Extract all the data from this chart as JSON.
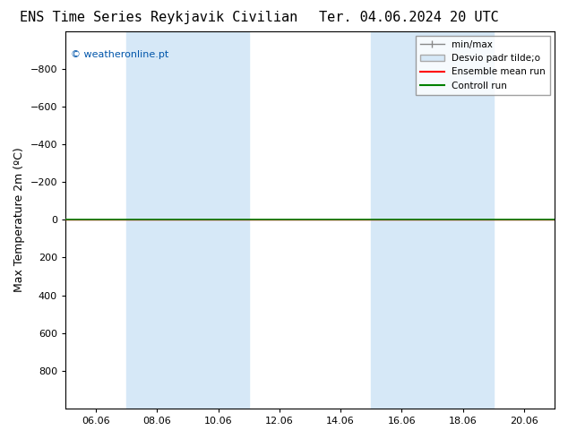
{
  "title_left": "ENS Time Series Reykjavik Civilian",
  "title_right": "Ter. 04.06.2024 20 UTC",
  "ylabel": "Max Temperature 2m (ºC)",
  "ylim": [
    -1000,
    1000
  ],
  "yticks": [
    -800,
    -600,
    -400,
    -200,
    0,
    200,
    400,
    600,
    800
  ],
  "xtick_labels": [
    "06.06",
    "08.06",
    "10.06",
    "12.06",
    "14.06",
    "16.06",
    "18.06",
    "20.06"
  ],
  "xtick_positions": [
    1,
    3,
    5,
    7,
    9,
    11,
    13,
    15
  ],
  "blue_bands": [
    [
      2,
      4
    ],
    [
      4,
      6
    ],
    [
      10,
      12
    ],
    [
      12,
      14
    ]
  ],
  "band_color": "#d6e8f7",
  "ensemble_mean_y": 0,
  "control_run_y": 0,
  "ensemble_mean_color": "#ff0000",
  "control_run_color": "#008000",
  "bg_color": "#ffffff",
  "watermark": "© weatheronline.pt",
  "watermark_color": "#0055aa",
  "legend_entries": [
    "min/max",
    "Desvio padr tilde;o",
    "Ensemble mean run",
    "Controll run"
  ],
  "legend_colors": [
    "#888888",
    "#aaccee",
    "#ff0000",
    "#008000"
  ],
  "title_fontsize": 11,
  "axis_fontsize": 9,
  "tick_fontsize": 8
}
